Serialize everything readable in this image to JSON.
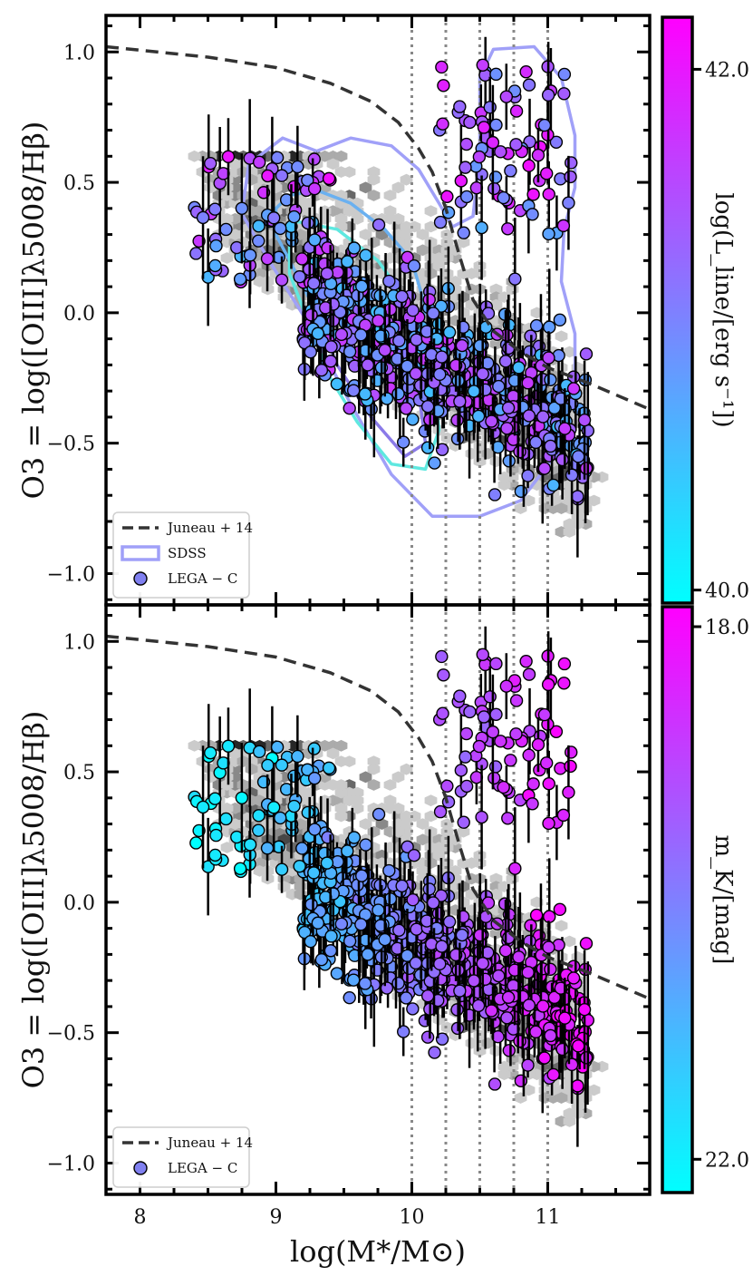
{
  "chart_data": [
    {
      "type": "scatter",
      "panel": "top",
      "xlabel": "log(M*/M⊙)",
      "ylabel": "O3 = log([OIII]λ5008/Hβ)",
      "xlim": [
        7.75,
        11.75
      ],
      "ylim": [
        -1.12,
        1.14
      ],
      "x_ticks": [
        "8",
        "9",
        "10",
        "11"
      ],
      "y_ticks": [
        "1.0",
        "0.5",
        "0.0",
        "−0.5",
        "−1.0"
      ],
      "vertical_lines_x": [
        10.0,
        10.25,
        10.5,
        10.75,
        11.0
      ],
      "legend": [
        "Juneau + 14",
        "SDSS",
        "LEGA − C"
      ],
      "legend_position": "lower-left",
      "colorbar": {
        "label": "log(L_line/[erg s⁻¹])",
        "ticks": [
          "42.0",
          "40.0"
        ],
        "range": [
          39.95,
          42.2
        ],
        "cmap": [
          "#00ffff",
          "#ff00ff"
        ]
      },
      "series": [
        {
          "name": "Juneau + 14",
          "kind": "dashed-line",
          "color": "#333333"
        },
        {
          "name": "SDSS",
          "kind": "contour",
          "color": "#a0a0f8"
        },
        {
          "name": "LEGA − C",
          "kind": "scatter",
          "color": "#8080f0"
        }
      ]
    },
    {
      "type": "scatter",
      "panel": "bottom",
      "xlabel": "log(M*/M⊙)",
      "ylabel": "O3 = log([OIII]λ5008/Hβ)",
      "xlim": [
        7.75,
        11.75
      ],
      "ylim": [
        -1.12,
        1.14
      ],
      "x_ticks": [
        "8",
        "9",
        "10",
        "11"
      ],
      "y_ticks": [
        "1.0",
        "0.5",
        "0.0",
        "−0.5",
        "−1.0"
      ],
      "vertical_lines_x": [
        10.0,
        10.25,
        10.5,
        10.75,
        11.0
      ],
      "legend": [
        "Juneau + 14",
        "LEGA − C"
      ],
      "legend_position": "lower-left",
      "colorbar": {
        "label": "m_K/[mag]",
        "ticks": [
          "18.0",
          "22.0"
        ],
        "range": [
          22.25,
          17.85
        ],
        "cmap": [
          "#00ffff",
          "#ff00ff"
        ]
      },
      "series": [
        {
          "name": "Juneau + 14",
          "kind": "dashed-line",
          "color": "#333333"
        },
        {
          "name": "LEGA − C",
          "kind": "scatter",
          "color": "#8080f0"
        }
      ]
    }
  ],
  "juneau_curve": {
    "x": [
      7.75,
      8.5,
      9.0,
      9.4,
      9.7,
      9.9,
      10.05,
      10.15,
      10.25,
      10.35,
      10.45,
      10.6,
      10.8,
      11.0,
      11.3,
      11.75
    ],
    "y": [
      1.02,
      0.98,
      0.94,
      0.88,
      0.81,
      0.73,
      0.63,
      0.54,
      0.4,
      0.22,
      0.05,
      -0.07,
      -0.15,
      -0.21,
      -0.27,
      -0.37
    ]
  },
  "sdss_contours": [
    {
      "color": "#a0a0f8",
      "points": [
        [
          9.3,
          0.62
        ],
        [
          9.55,
          0.67
        ],
        [
          9.85,
          0.64
        ],
        [
          10.05,
          0.55
        ],
        [
          10.2,
          0.42
        ],
        [
          10.3,
          0.33
        ],
        [
          10.45,
          0.37
        ],
        [
          10.5,
          0.6
        ],
        [
          10.5,
          0.9
        ],
        [
          10.6,
          1.01
        ],
        [
          10.9,
          1.02
        ],
        [
          11.1,
          0.9
        ],
        [
          11.2,
          0.68
        ],
        [
          11.2,
          0.48
        ],
        [
          11.12,
          0.32
        ],
        [
          11.1,
          0.12
        ],
        [
          11.2,
          -0.08
        ],
        [
          11.2,
          -0.28
        ],
        [
          11.05,
          -0.55
        ],
        [
          10.8,
          -0.72
        ],
        [
          10.5,
          -0.78
        ],
        [
          10.15,
          -0.78
        ],
        [
          9.85,
          -0.62
        ],
        [
          9.55,
          -0.35
        ],
        [
          9.25,
          -0.05
        ],
        [
          8.95,
          0.2
        ],
        [
          8.75,
          0.38
        ],
        [
          8.8,
          0.57
        ],
        [
          9.05,
          0.67
        ],
        [
          9.3,
          0.62
        ]
      ]
    },
    {
      "color": "#6ab0f0",
      "points": [
        [
          9.1,
          0.45
        ],
        [
          9.3,
          0.47
        ],
        [
          9.55,
          0.42
        ],
        [
          9.8,
          0.32
        ],
        [
          10.0,
          0.2
        ],
        [
          10.1,
          0.02
        ],
        [
          10.05,
          -0.12
        ],
        [
          9.9,
          -0.2
        ],
        [
          9.6,
          -0.18
        ],
        [
          9.35,
          -0.05
        ],
        [
          9.15,
          0.15
        ],
        [
          9.0,
          0.3
        ],
        [
          9.0,
          0.4
        ],
        [
          9.1,
          0.45
        ]
      ]
    },
    {
      "color": "#5fe8e0",
      "points": [
        [
          9.15,
          0.35
        ],
        [
          9.45,
          0.32
        ],
        [
          9.75,
          0.2
        ],
        [
          10.0,
          0.02
        ],
        [
          10.15,
          -0.2
        ],
        [
          10.2,
          -0.45
        ],
        [
          10.1,
          -0.6
        ],
        [
          9.85,
          -0.58
        ],
        [
          9.6,
          -0.42
        ],
        [
          9.4,
          -0.25
        ],
        [
          9.25,
          -0.05
        ],
        [
          9.1,
          0.15
        ],
        [
          9.1,
          0.3
        ],
        [
          9.15,
          0.35
        ]
      ]
    },
    {
      "color": "#8a7ae8",
      "points": [
        [
          9.3,
          0.1
        ],
        [
          9.55,
          0.05
        ],
        [
          9.85,
          -0.15
        ],
        [
          10.05,
          -0.3
        ],
        [
          10.1,
          -0.5
        ],
        [
          9.95,
          -0.55
        ],
        [
          9.7,
          -0.4
        ],
        [
          9.45,
          -0.2
        ],
        [
          9.3,
          0.0
        ],
        [
          9.3,
          0.1
        ]
      ]
    }
  ]
}
